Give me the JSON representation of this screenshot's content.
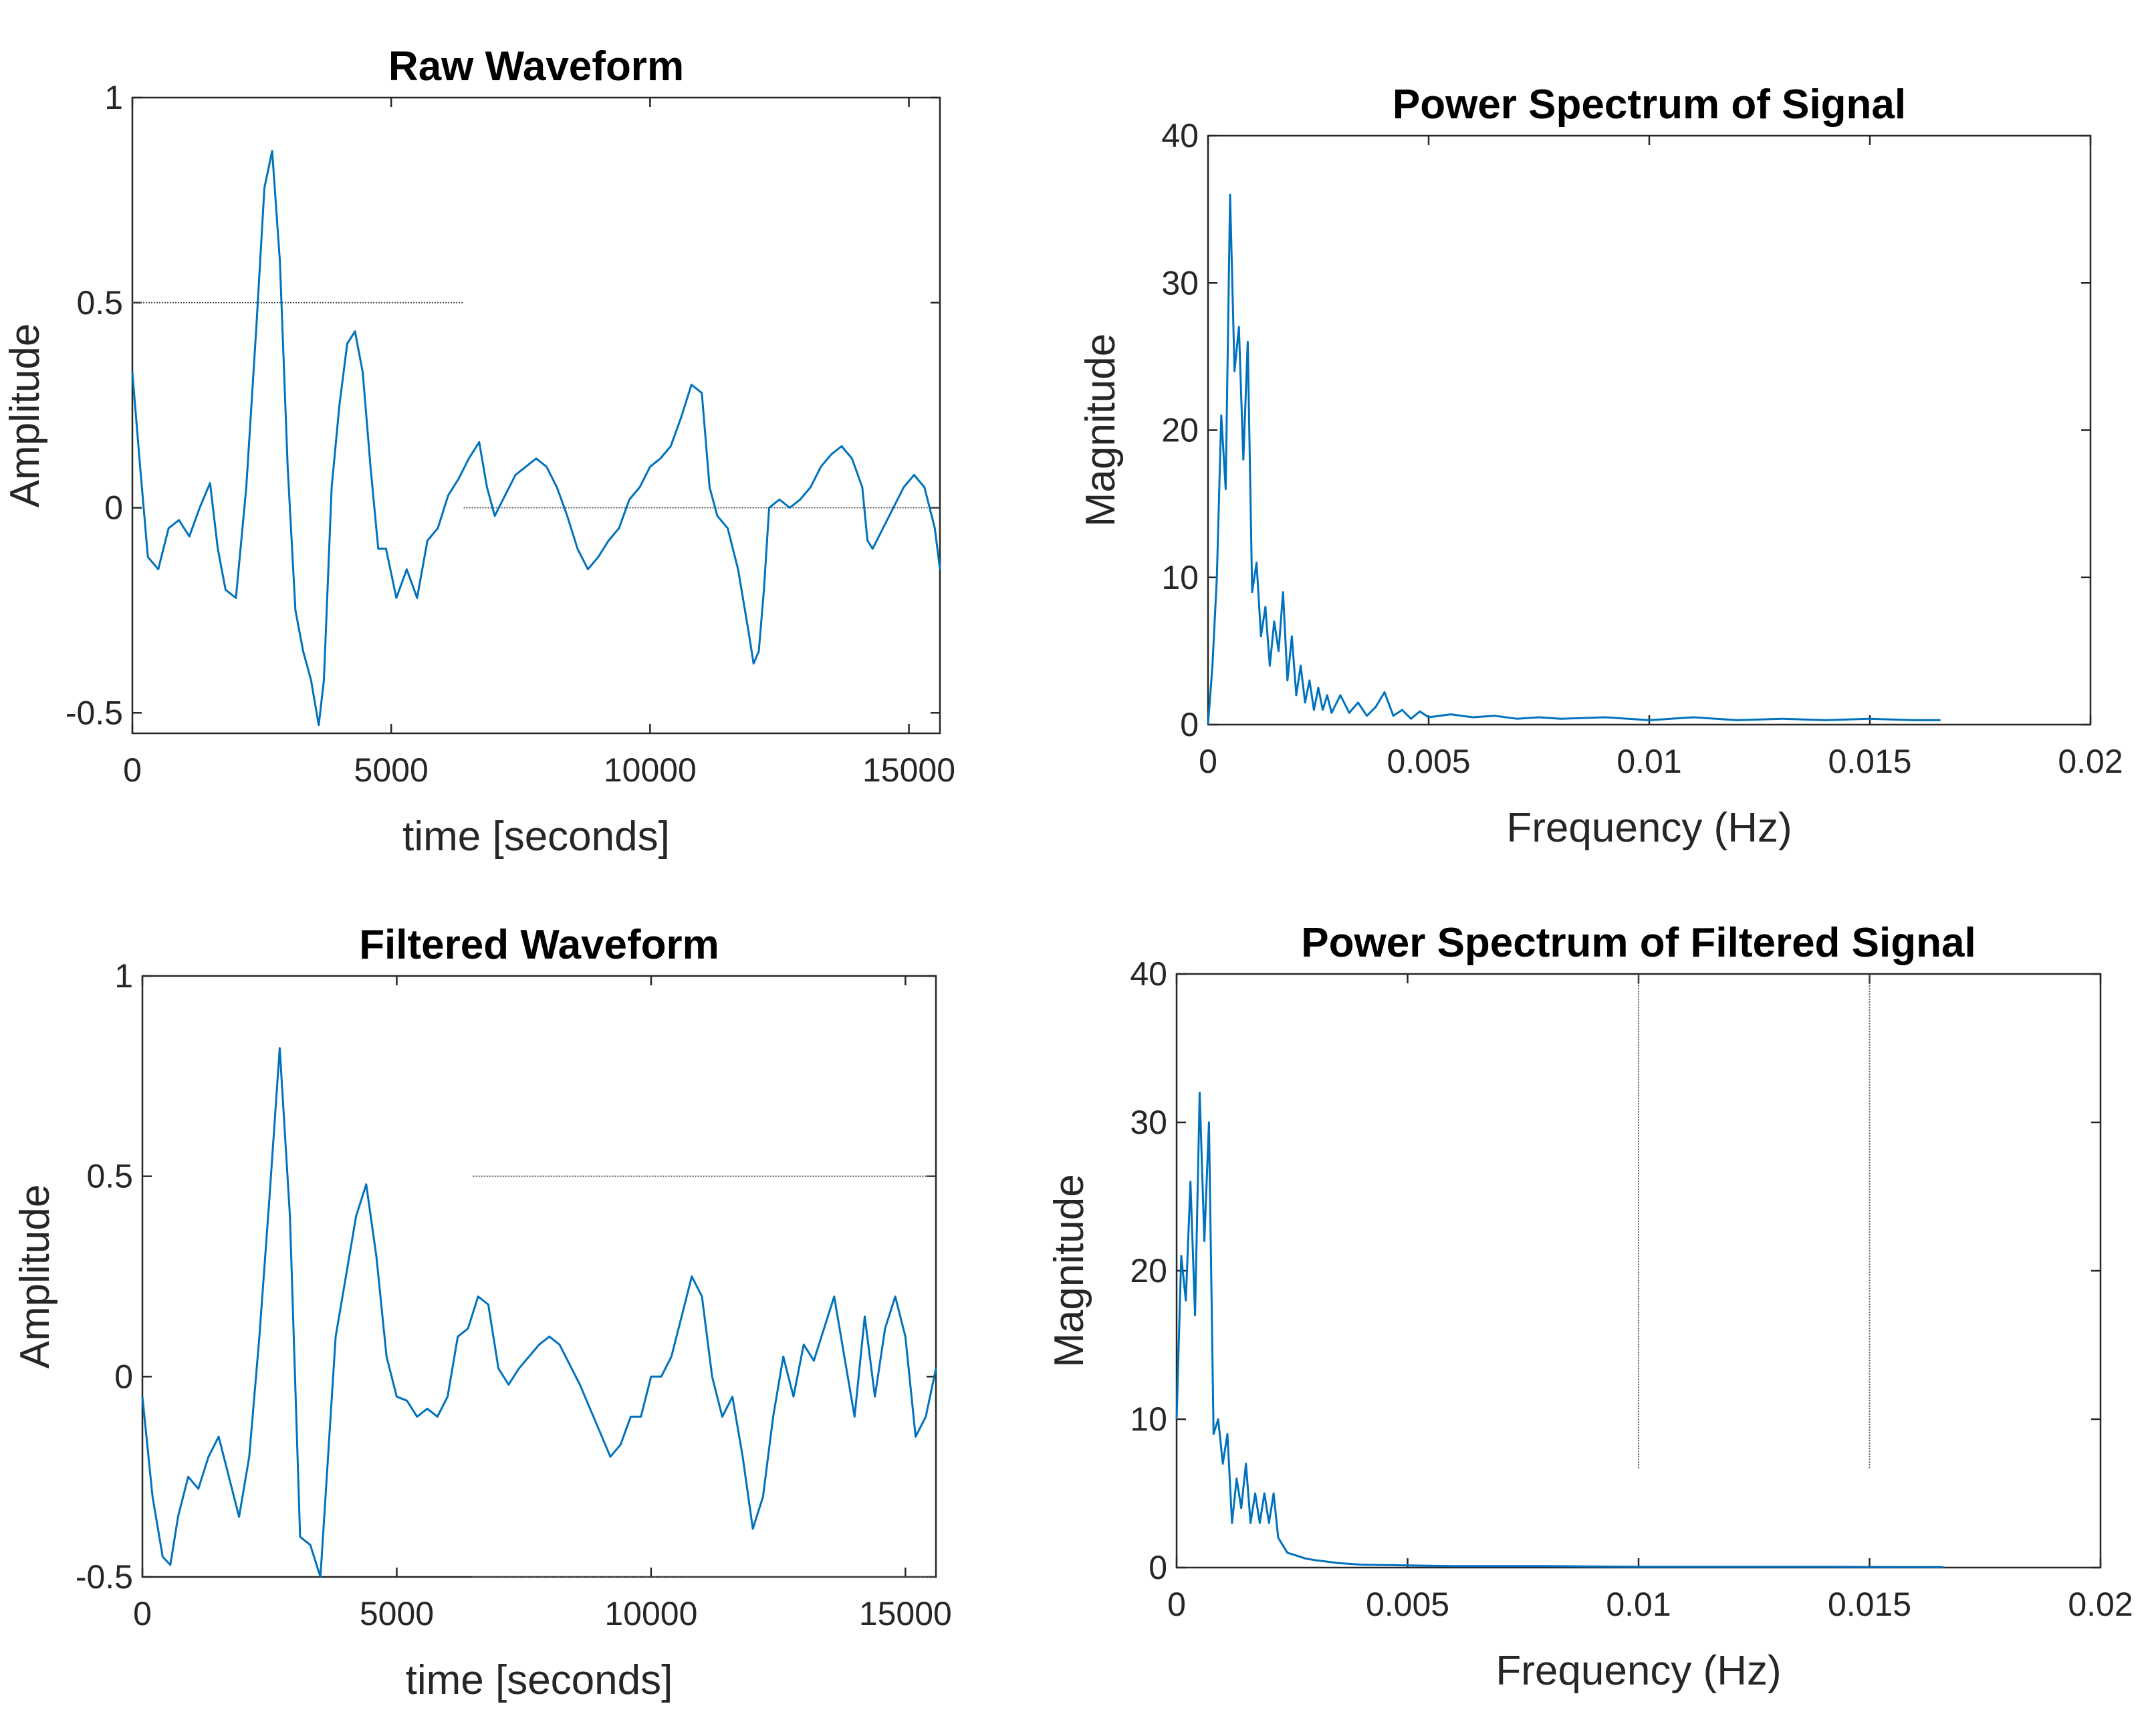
{
  "chart_data": [
    {
      "type": "line",
      "title": "Raw Waveform",
      "xlabel": "time [seconds]",
      "ylabel": "Amplitude",
      "xlim": [
        0,
        15600
      ],
      "ylim": [
        -0.55,
        1
      ],
      "xticks": [
        0,
        5000,
        10000,
        15000
      ],
      "xtick_labels": [
        "0",
        "5000",
        "10000",
        "15000"
      ],
      "yticks": [
        -0.5,
        0,
        0.5,
        1
      ],
      "ytick_labels": [
        "-0.5",
        "0",
        "0.5",
        "1"
      ],
      "color": "#0072BD",
      "series": [
        {
          "name": "raw",
          "x": [
            0,
            150,
            300,
            500,
            700,
            900,
            1100,
            1300,
            1500,
            1650,
            1800,
            2000,
            2200,
            2400,
            2550,
            2700,
            2850,
            3000,
            3150,
            3300,
            3450,
            3600,
            3700,
            3850,
            4000,
            4150,
            4300,
            4450,
            4600,
            4750,
            4900,
            5100,
            5300,
            5500,
            5700,
            5900,
            6100,
            6300,
            6500,
            6700,
            6850,
            7000,
            7200,
            7400,
            7600,
            7800,
            8000,
            8200,
            8400,
            8600,
            8800,
            9000,
            9200,
            9400,
            9600,
            9800,
            10000,
            10200,
            10400,
            10600,
            10800,
            11000,
            11150,
            11300,
            11500,
            11700,
            11900,
            12000,
            12100,
            12200,
            12300,
            12500,
            12700,
            12900,
            13100,
            13300,
            13500,
            13700,
            13900,
            14100,
            14200,
            14300,
            14500,
            14700,
            14900,
            15100,
            15300,
            15500,
            15600
          ],
          "values": [
            0.33,
            0.1,
            -0.12,
            -0.15,
            -0.05,
            -0.03,
            -0.07,
            0,
            0.06,
            -0.1,
            -0.2,
            -0.22,
            0.05,
            0.45,
            0.78,
            0.87,
            0.6,
            0.1,
            -0.25,
            -0.35,
            -0.42,
            -0.53,
            -0.42,
            0.05,
            0.25,
            0.4,
            0.43,
            0.33,
            0.1,
            -0.1,
            -0.1,
            -0.22,
            -0.15,
            -0.22,
            -0.08,
            -0.05,
            0.03,
            0.07,
            0.12,
            0.16,
            0.05,
            -0.02,
            0.03,
            0.08,
            0.1,
            0.12,
            0.1,
            0.05,
            -0.02,
            -0.1,
            -0.15,
            -0.12,
            -0.08,
            -0.05,
            0.02,
            0.05,
            0.1,
            0.12,
            0.15,
            0.22,
            0.3,
            0.28,
            0.05,
            -0.02,
            -0.05,
            -0.15,
            -0.3,
            -0.38,
            -0.35,
            -0.2,
            0.0,
            0.02,
            0.0,
            0.02,
            0.05,
            0.1,
            0.13,
            0.15,
            0.12,
            0.05,
            -0.08,
            -0.1,
            -0.05,
            0.0,
            0.05,
            0.08,
            0.05,
            -0.05,
            -0.15
          ]
        }
      ],
      "reference_lines": [
        {
          "label": "0.5",
          "x_range": [
            0,
            6400
          ],
          "y": 0.5
        },
        {
          "label": "0",
          "x_range": [
            6400,
            15600
          ],
          "y": 0
        }
      ]
    },
    {
      "type": "line",
      "title": "Power Spectrum of Signal",
      "xlabel": "Frequency (Hz)",
      "ylabel": "Magnitude",
      "xlim": [
        0,
        0.02
      ],
      "ylim": [
        0,
        40
      ],
      "xticks": [
        0,
        0.005,
        0.01,
        0.015,
        0.02
      ],
      "xtick_labels": [
        "0",
        "0.005",
        "0.01",
        "0.015",
        "0.02"
      ],
      "yticks": [
        0,
        10,
        20,
        30,
        40
      ],
      "ytick_labels": [
        "0",
        "10",
        "20",
        "30",
        "40"
      ],
      "color": "#0072BD",
      "series": [
        {
          "name": "spectrum",
          "x": [
            0,
            0.0001,
            0.0002,
            0.0003,
            0.0004,
            0.0005,
            0.0006,
            0.0007,
            0.0008,
            0.0009,
            0.001,
            0.0011,
            0.0012,
            0.0013,
            0.0014,
            0.0015,
            0.0016,
            0.0017,
            0.0018,
            0.0019,
            0.002,
            0.0021,
            0.0022,
            0.0023,
            0.0024,
            0.0025,
            0.0026,
            0.0027,
            0.0028,
            0.003,
            0.0032,
            0.0034,
            0.0036,
            0.0038,
            0.004,
            0.0042,
            0.0044,
            0.0046,
            0.0048,
            0.005,
            0.0055,
            0.006,
            0.0065,
            0.007,
            0.0075,
            0.008,
            0.009,
            0.01,
            0.011,
            0.012,
            0.013,
            0.014,
            0.015,
            0.016,
            0.0166
          ],
          "values": [
            0,
            4,
            10,
            21,
            16,
            36,
            24,
            27,
            18,
            26,
            9,
            11,
            6,
            8,
            4,
            7,
            5,
            9,
            3,
            6,
            2,
            4,
            1.5,
            3,
            1,
            2.5,
            1,
            2,
            0.8,
            2,
            0.8,
            1.5,
            0.6,
            1.2,
            2.2,
            0.6,
            1.0,
            0.4,
            0.9,
            0.5,
            0.7,
            0.5,
            0.6,
            0.4,
            0.5,
            0.4,
            0.5,
            0.3,
            0.5,
            0.3,
            0.4,
            0.3,
            0.4,
            0.3,
            0.3
          ]
        }
      ]
    },
    {
      "type": "line",
      "title": "Filtered Waveform",
      "xlabel": "time [seconds]",
      "ylabel": "Amplitude",
      "xlim": [
        0,
        15600
      ],
      "ylim": [
        -0.5,
        1
      ],
      "xticks": [
        0,
        5000,
        10000,
        15000
      ],
      "xtick_labels": [
        "0",
        "5000",
        "10000",
        "15000"
      ],
      "yticks": [
        -0.5,
        0,
        0.5,
        1
      ],
      "ytick_labels": [
        "-0.5",
        "0",
        "0.5",
        "1"
      ],
      "color": "#0072BD",
      "series": [
        {
          "name": "filtered",
          "x": [
            0,
            200,
            400,
            550,
            700,
            900,
            1100,
            1300,
            1500,
            1700,
            1900,
            2100,
            2300,
            2500,
            2700,
            2900,
            3100,
            3300,
            3500,
            3650,
            3800,
            4000,
            4200,
            4400,
            4600,
            4800,
            5000,
            5200,
            5400,
            5600,
            5800,
            6000,
            6200,
            6400,
            6600,
            6800,
            7000,
            7200,
            7400,
            7600,
            7800,
            8000,
            8200,
            8400,
            8600,
            8800,
            9000,
            9200,
            9400,
            9600,
            9800,
            10000,
            10200,
            10400,
            10600,
            10800,
            11000,
            11200,
            11400,
            11600,
            11800,
            12000,
            12200,
            12400,
            12600,
            12800,
            13000,
            13200,
            13400,
            13600,
            13800,
            14000,
            14200,
            14400,
            14600,
            14800,
            15000,
            15200,
            15400,
            15600
          ],
          "values": [
            -0.05,
            -0.3,
            -0.45,
            -0.47,
            -0.35,
            -0.25,
            -0.28,
            -0.2,
            -0.15,
            -0.25,
            -0.35,
            -0.2,
            0.1,
            0.45,
            0.82,
            0.4,
            -0.4,
            -0.42,
            -0.5,
            -0.2,
            0.1,
            0.25,
            0.4,
            0.48,
            0.3,
            0.05,
            -0.05,
            -0.06,
            -0.1,
            -0.08,
            -0.1,
            -0.05,
            0.1,
            0.12,
            0.2,
            0.18,
            0.02,
            -0.02,
            0.02,
            0.05,
            0.08,
            0.1,
            0.08,
            0.03,
            -0.02,
            -0.08,
            -0.14,
            -0.2,
            -0.17,
            -0.1,
            -0.1,
            0.0,
            0.0,
            0.05,
            0.15,
            0.25,
            0.2,
            0.0,
            -0.1,
            -0.05,
            -0.2,
            -0.38,
            -0.3,
            -0.1,
            0.05,
            -0.05,
            0.08,
            0.04,
            0.12,
            0.2,
            0.05,
            -0.1,
            0.15,
            -0.05,
            0.12,
            0.2,
            0.1,
            -0.15,
            -0.1,
            0.02
          ]
        }
      ],
      "reference_lines": [
        {
          "label": "0.5",
          "x_range": [
            6500,
            15600
          ],
          "y": 0.5
        },
        {
          "label": "-0.5",
          "x_range": [
            6500,
            15600
          ],
          "y": -0.5
        }
      ]
    },
    {
      "type": "line",
      "title": "Power Spectrum of Filtered Signal",
      "xlabel": "Frequency (Hz)",
      "ylabel": "Magnitude",
      "xlim": [
        0,
        0.02
      ],
      "ylim": [
        0,
        40
      ],
      "xticks": [
        0,
        0.005,
        0.01,
        0.015,
        0.02
      ],
      "xtick_labels": [
        "0",
        "0.005",
        "0.01",
        "0.015",
        "0.02"
      ],
      "yticks": [
        0,
        10,
        20,
        30,
        40
      ],
      "ytick_labels": [
        "0",
        "10",
        "20",
        "30",
        "40"
      ],
      "color": "#0072BD",
      "series": [
        {
          "name": "filtered_spectrum",
          "x": [
            0,
            0.0001,
            0.0002,
            0.0003,
            0.0004,
            0.0005,
            0.0006,
            0.0007,
            0.0008,
            0.0009,
            0.001,
            0.0011,
            0.0012,
            0.0013,
            0.0014,
            0.0015,
            0.0016,
            0.0017,
            0.0018,
            0.0019,
            0.002,
            0.0021,
            0.0022,
            0.0023,
            0.0024,
            0.0026,
            0.0028,
            0.003,
            0.0035,
            0.004,
            0.005,
            0.006,
            0.008,
            0.01,
            0.012,
            0.014,
            0.016,
            0.0166
          ],
          "values": [
            10,
            21,
            18,
            26,
            17,
            32,
            22,
            30,
            9,
            10,
            7,
            9,
            3,
            6,
            4,
            7,
            3,
            5,
            3,
            5,
            3,
            5,
            2,
            1.5,
            1,
            0.8,
            0.6,
            0.5,
            0.3,
            0.2,
            0.15,
            0.1,
            0.1,
            0.05,
            0.05,
            0.05,
            0.03,
            0.03
          ]
        }
      ],
      "reference_lines": [
        {
          "label": "0.01",
          "x": 0.01,
          "y_range": [
            6.7,
            40
          ]
        },
        {
          "label": "0.015",
          "x": 0.015,
          "y_range": [
            6.7,
            40
          ]
        }
      ]
    }
  ]
}
